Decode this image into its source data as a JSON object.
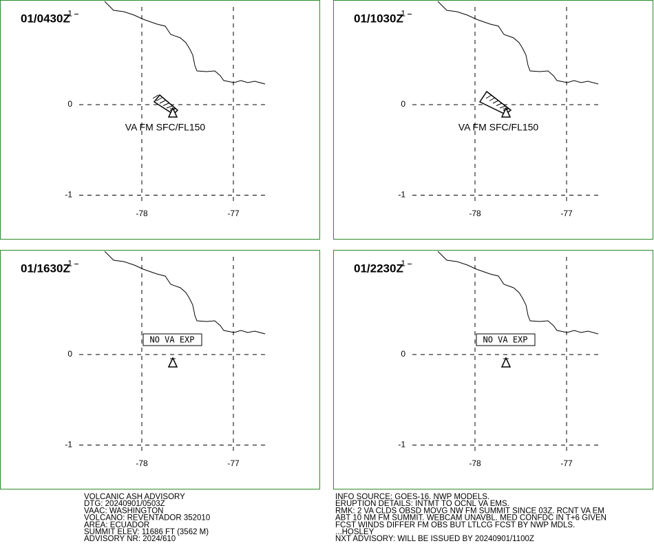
{
  "panels": [
    {
      "time": "01/0430Z",
      "lat_ticks": [
        1,
        0,
        -1
      ],
      "lon_ticks": [
        -78,
        -77
      ],
      "ash_label": "VA FM SFC/FL150",
      "plume": "small"
    },
    {
      "time": "01/1030Z",
      "lat_ticks": [
        1,
        0,
        -1
      ],
      "lon_ticks": [
        -78,
        -77
      ],
      "ash_label": "VA FM SFC/FL150",
      "plume": "large"
    },
    {
      "time": "01/1630Z",
      "lat_ticks": [
        1,
        0,
        -1
      ],
      "lon_ticks": [
        -78,
        -77
      ],
      "no_ash_label": "NO VA EXP"
    },
    {
      "time": "01/2230Z",
      "lat_ticks": [
        1,
        0,
        -1
      ],
      "lon_ticks": [
        -78,
        -77
      ],
      "no_ash_label": "NO VA EXP"
    }
  ],
  "advisory": {
    "left": [
      "VOLCANIC ASH ADVISORY",
      "DTG: 20240901/0503Z",
      "VAAC: WASHINGTON",
      "VOLCANO: REVENTADOR 352010",
      "AREA: ECUADOR",
      "SUMMIT ELEV: 11686 FT (3562 M)",
      "ADVISORY NR: 2024/610"
    ],
    "right": [
      "INFO SOURCE: GOES-16. NWP MODELS.",
      "ERUPTION DETAILS: INTMT TO OCNL VA EMS.",
      "RMK: 2 VA CLDS OBSD MOVG NW FM SUMMIT SINCE 03Z. RCNT VA EM",
      "ABT 10 NM FM SUMMIT. WEBCAM UNAVBL. MED CONFDC IN T+6 GIVEN",
      "FCST WINDS DIFFER FM OBS BUT LTLCG FCST BY NWP MDLS.",
      "...HOSLEY",
      "NXT ADVISORY: WILL BE ISSUED BY 20240901/1100Z"
    ]
  }
}
